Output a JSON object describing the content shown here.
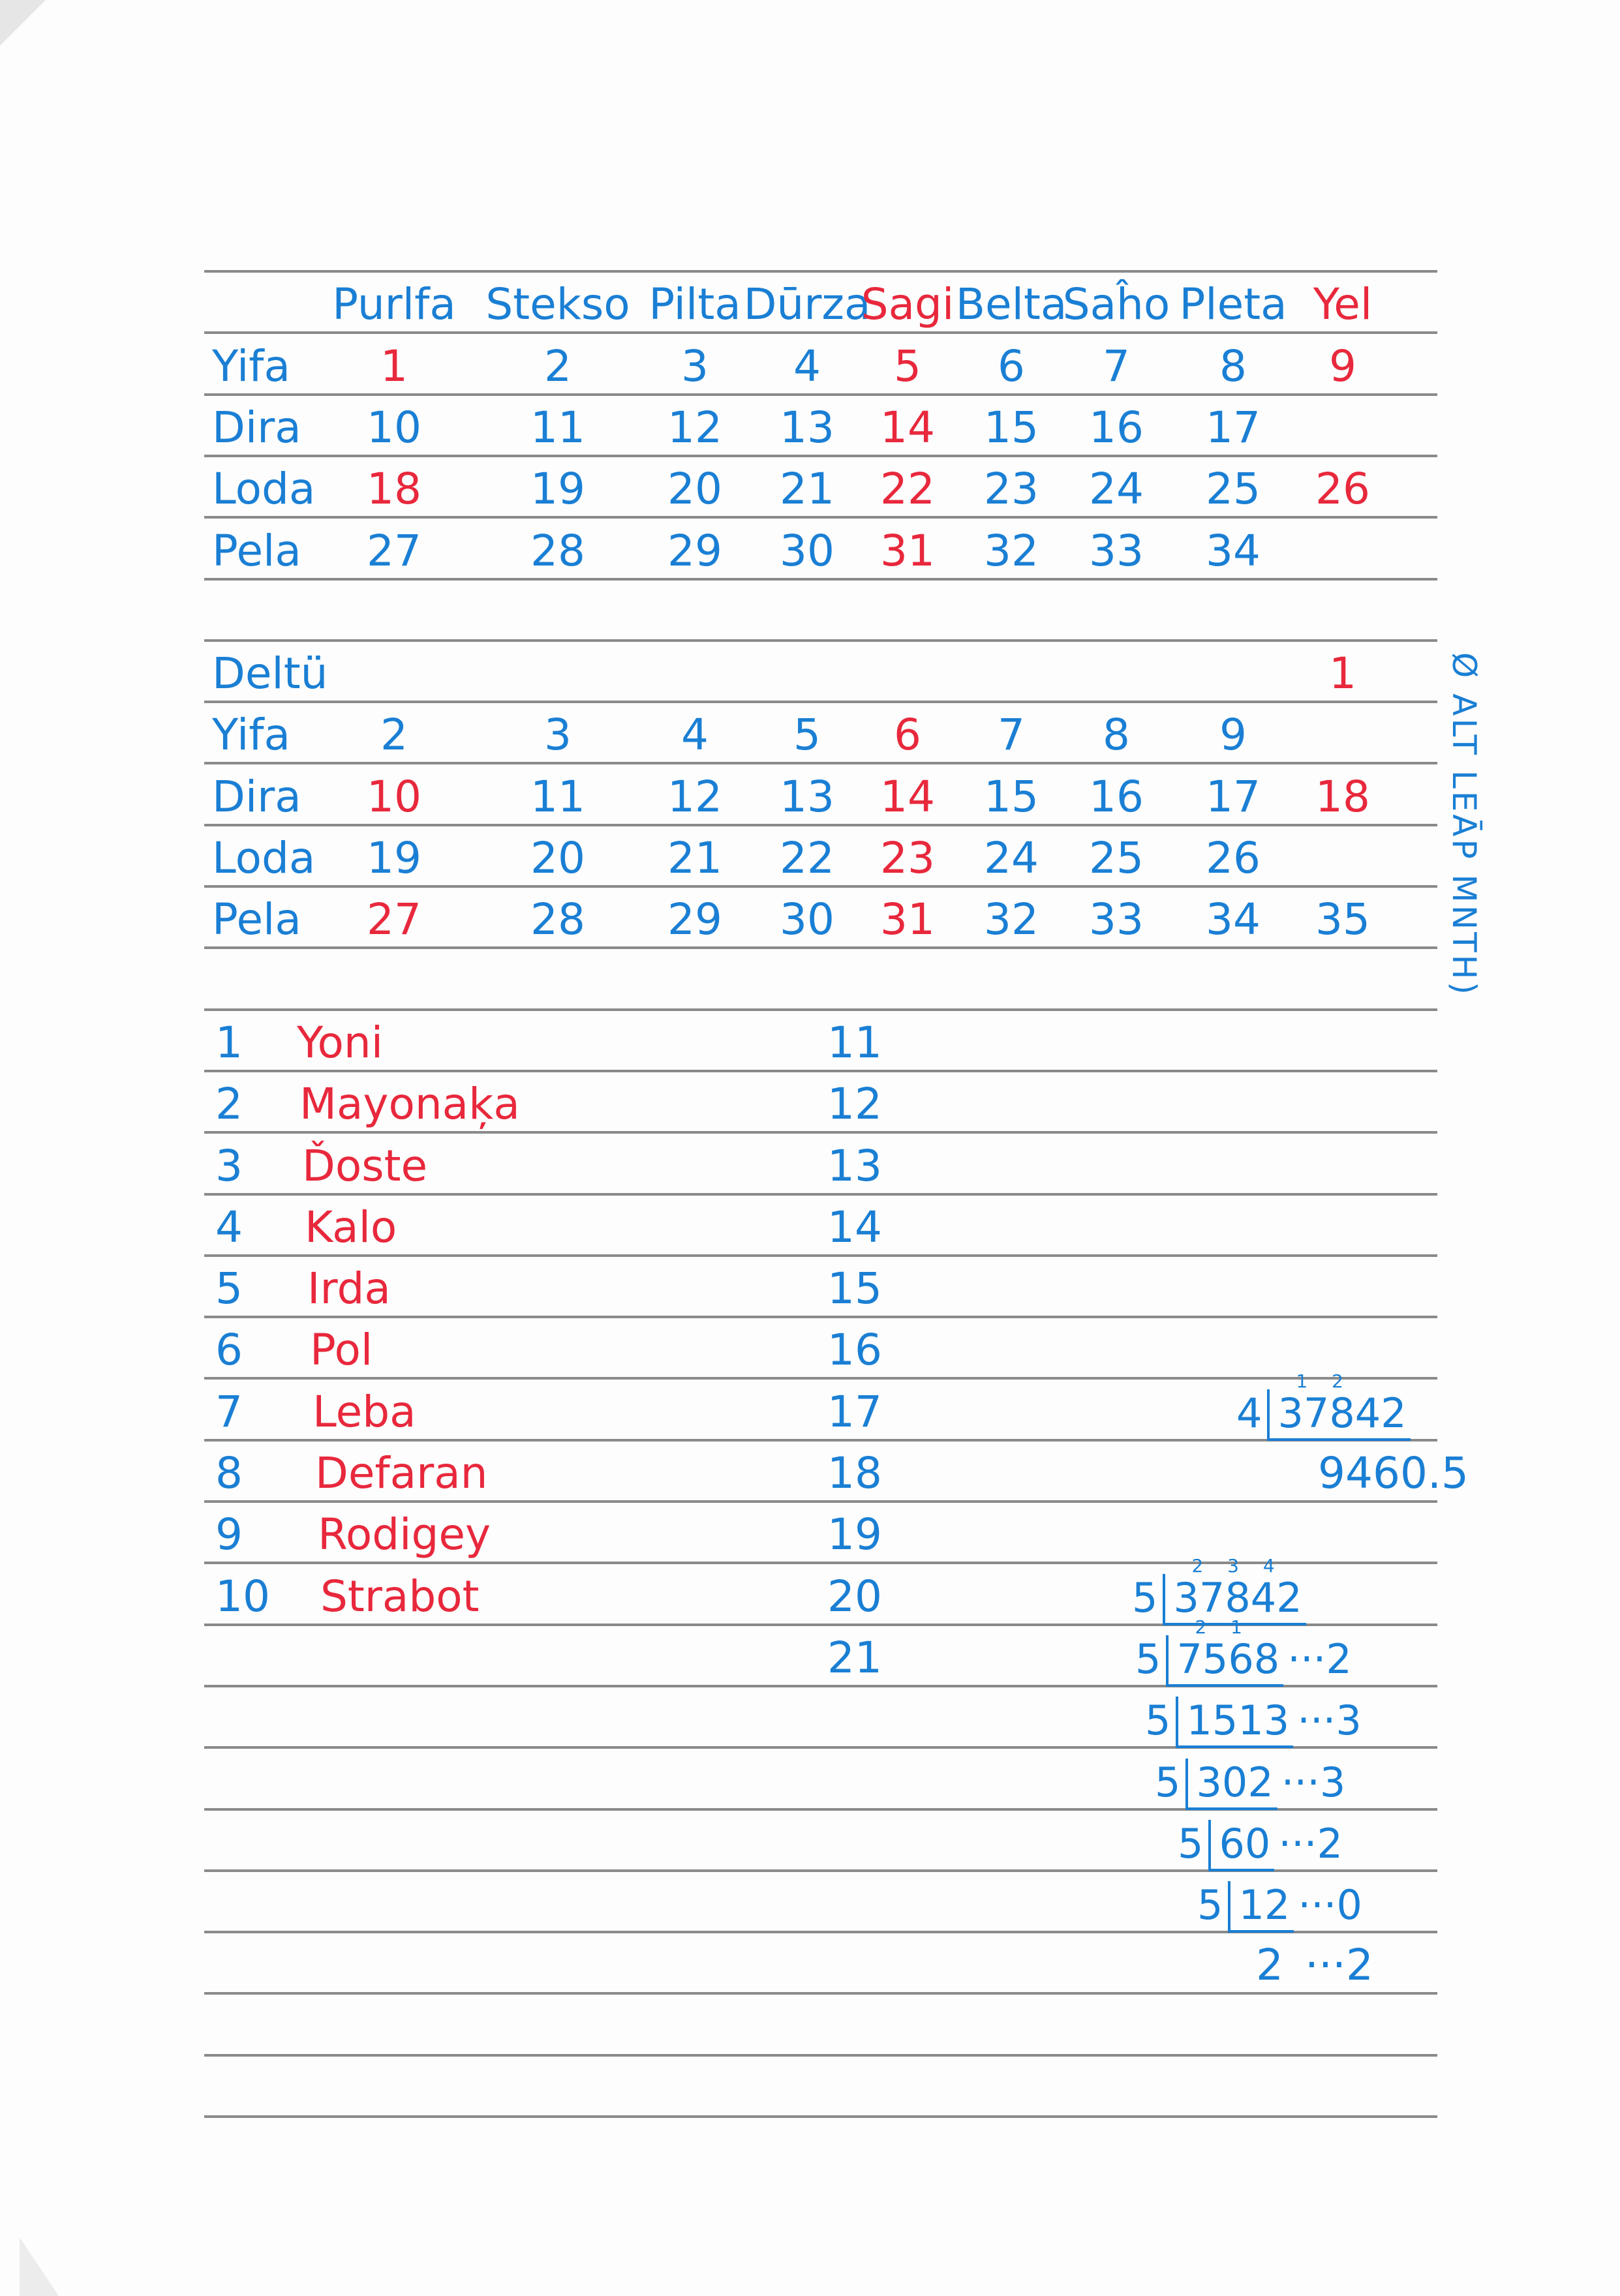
{
  "colors": {
    "blue": "#1a7fd4",
    "red": "#e8283c"
  },
  "calendar": {
    "columns": [
      {
        "label": "Purlfa",
        "c": "b"
      },
      {
        "label": "Stekso",
        "c": "b"
      },
      {
        "label": "Pilta",
        "c": "b"
      },
      {
        "label": "Dūrza",
        "c": "b"
      },
      {
        "label": "Sagi",
        "c": "r"
      },
      {
        "label": "Belta",
        "c": "b"
      },
      {
        "label": "Saĥo",
        "c": "b"
      },
      {
        "label": "Pleta",
        "c": "b"
      },
      {
        "label": "Yel",
        "c": "r"
      }
    ],
    "month1": [
      {
        "label": "Yifa",
        "cells": [
          {
            "v": "1",
            "c": "r"
          },
          {
            "v": "2",
            "c": "b"
          },
          {
            "v": "3",
            "c": "b"
          },
          {
            "v": "4",
            "c": "b"
          },
          {
            "v": "5",
            "c": "r"
          },
          {
            "v": "6",
            "c": "b"
          },
          {
            "v": "7",
            "c": "b"
          },
          {
            "v": "8",
            "c": "b"
          },
          {
            "v": "9",
            "c": "r"
          }
        ]
      },
      {
        "label": "Dira",
        "cells": [
          {
            "v": "10",
            "c": "b"
          },
          {
            "v": "11",
            "c": "b"
          },
          {
            "v": "12",
            "c": "b"
          },
          {
            "v": "13",
            "c": "b"
          },
          {
            "v": "14",
            "c": "r"
          },
          {
            "v": "15",
            "c": "b"
          },
          {
            "v": "16",
            "c": "b"
          },
          {
            "v": "17",
            "c": "b"
          },
          null
        ]
      },
      {
        "label": "Loda",
        "cells": [
          {
            "v": "18",
            "c": "r"
          },
          {
            "v": "19",
            "c": "b"
          },
          {
            "v": "20",
            "c": "b"
          },
          {
            "v": "21",
            "c": "b"
          },
          {
            "v": "22",
            "c": "r"
          },
          {
            "v": "23",
            "c": "b"
          },
          {
            "v": "24",
            "c": "b"
          },
          {
            "v": "25",
            "c": "b"
          },
          {
            "v": "26",
            "c": "r"
          }
        ]
      },
      {
        "label": "Pela",
        "cells": [
          {
            "v": "27",
            "c": "b"
          },
          {
            "v": "28",
            "c": "b"
          },
          {
            "v": "29",
            "c": "b"
          },
          {
            "v": "30",
            "c": "b"
          },
          {
            "v": "31",
            "c": "r"
          },
          {
            "v": "32",
            "c": "b"
          },
          {
            "v": "33",
            "c": "b"
          },
          {
            "v": "34",
            "c": "b"
          },
          null
        ]
      }
    ],
    "month2": [
      {
        "label": "Deltü",
        "cells": [
          null,
          null,
          null,
          null,
          null,
          null,
          null,
          null,
          {
            "v": "1",
            "c": "r"
          }
        ]
      },
      {
        "label": "Yifa",
        "cells": [
          {
            "v": "2",
            "c": "b"
          },
          {
            "v": "3",
            "c": "b"
          },
          {
            "v": "4",
            "c": "b"
          },
          {
            "v": "5",
            "c": "b"
          },
          {
            "v": "6",
            "c": "r"
          },
          {
            "v": "7",
            "c": "b"
          },
          {
            "v": "8",
            "c": "b"
          },
          {
            "v": "9",
            "c": "b"
          },
          null
        ]
      },
      {
        "label": "Dira",
        "cells": [
          {
            "v": "10",
            "c": "r"
          },
          {
            "v": "11",
            "c": "b"
          },
          {
            "v": "12",
            "c": "b"
          },
          {
            "v": "13",
            "c": "b"
          },
          {
            "v": "14",
            "c": "r"
          },
          {
            "v": "15",
            "c": "b"
          },
          {
            "v": "16",
            "c": "b"
          },
          {
            "v": "17",
            "c": "b"
          },
          {
            "v": "18",
            "c": "r"
          }
        ]
      },
      {
        "label": "Loda",
        "cells": [
          {
            "v": "19",
            "c": "b"
          },
          {
            "v": "20",
            "c": "b"
          },
          {
            "v": "21",
            "c": "b"
          },
          {
            "v": "22",
            "c": "b"
          },
          {
            "v": "23",
            "c": "r"
          },
          {
            "v": "24",
            "c": "b"
          },
          {
            "v": "25",
            "c": "b"
          },
          {
            "v": "26",
            "c": "b"
          },
          null
        ]
      },
      {
        "label": "Pela",
        "cells": [
          {
            "v": "27",
            "c": "r"
          },
          {
            "v": "28",
            "c": "b"
          },
          {
            "v": "29",
            "c": "b"
          },
          {
            "v": "30",
            "c": "b"
          },
          {
            "v": "31",
            "c": "r"
          },
          {
            "v": "32",
            "c": "b"
          },
          {
            "v": "33",
            "c": "b"
          },
          {
            "v": "34",
            "c": "b"
          },
          {
            "v": "35",
            "c": "b"
          }
        ]
      }
    ],
    "side_note": "Ø ALT LEĀP MNTH)"
  },
  "names": [
    {
      "n": "1",
      "name": "Yoni"
    },
    {
      "n": "2",
      "name": "Mayonaķa"
    },
    {
      "n": "3",
      "name": "Ďoste"
    },
    {
      "n": "4",
      "name": "Kalo"
    },
    {
      "n": "5",
      "name": "Irda"
    },
    {
      "n": "6",
      "name": "Pol"
    },
    {
      "n": "7",
      "name": "Leba"
    },
    {
      "n": "8",
      "name": "Defaran"
    },
    {
      "n": "9",
      "name": "Rodigey"
    },
    {
      "n": "10",
      "name": "Strabot"
    }
  ],
  "numbers_11_21": [
    "11",
    "12",
    "13",
    "14",
    "15",
    "16",
    "17",
    "18",
    "19",
    "20",
    "21"
  ],
  "math": {
    "division4": {
      "divisor": "4",
      "dividend": "37842",
      "carries": "1 2",
      "result": "9460.5"
    },
    "base5": [
      {
        "divisor": "5",
        "dividend": "37842",
        "carries": "2 3 4",
        "remainder": ""
      },
      {
        "divisor": "5",
        "dividend": "7568",
        "carries": "2 1",
        "remainder": "···2"
      },
      {
        "divisor": "5",
        "dividend": "1513",
        "carries": "",
        "remainder": "···3"
      },
      {
        "divisor": "5",
        "dividend": "302",
        "carries": "",
        "remainder": "···3"
      },
      {
        "divisor": "5",
        "dividend": "60",
        "carries": "",
        "remainder": "···2"
      },
      {
        "divisor": "5",
        "dividend": "12",
        "carries": "",
        "remainder": "···0"
      },
      {
        "divisor": "",
        "dividend": "2",
        "carries": "",
        "remainder": "···2"
      }
    ]
  }
}
